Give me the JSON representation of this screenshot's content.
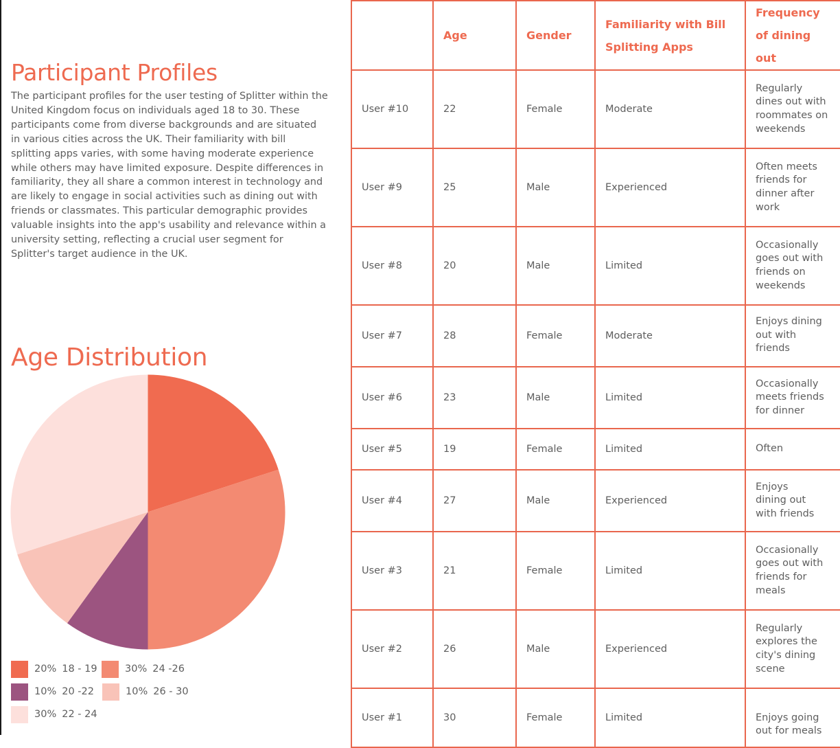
{
  "profiles": {
    "title": "Participant Profiles",
    "body": "The participant profiles for the user testing of Splitter within the United Kingdom focus on individuals aged 18 to 30. These participants come from diverse backgrounds and are situated in various cities across the UK. Their familiarity with bill splitting apps varies, with some having moderate experience while others may have limited exposure. Despite differences in familiarity, they all share a common interest in technology and are likely to engage in social activities such as dining out with friends or classmates. This particular demographic provides valuable insights into the app's usability and relevance within a university setting, reflecting a crucial user segment for Splitter's target audience in the UK."
  },
  "age_distribution": {
    "title": "Age Distribution",
    "legend": [
      {
        "percent": "20%",
        "range": "18 - 19",
        "color": "#f06b50"
      },
      {
        "percent": "30%",
        "range": "24 -26",
        "color": "#f38a72"
      },
      {
        "percent": "10%",
        "range": "20 -22",
        "color": "#9c5480"
      },
      {
        "percent": "10%",
        "range": "26 - 30",
        "color": "#f9c3b8"
      },
      {
        "percent": "30%",
        "range": "22 - 24",
        "color": "#fde0dc"
      }
    ]
  },
  "chart_data": {
    "type": "pie",
    "categories": [
      "18 - 19",
      "24 -26",
      "20 -22",
      "26 - 30",
      "22 - 24"
    ],
    "values": [
      20,
      30,
      10,
      10,
      30
    ],
    "colors": [
      "#f06b50",
      "#f38a72",
      "#9c5480",
      "#f9c3b8",
      "#fde0dc"
    ]
  },
  "table": {
    "headers": [
      "",
      "Age",
      "Gender",
      "Familiarity with Bill Splitting Apps",
      "Frequency of dining out"
    ],
    "rows": [
      {
        "user": "User #10",
        "age": "22",
        "gender": "Female",
        "familiarity": "Moderate",
        "frequency": "Regularly dines out with roommates on weekends"
      },
      {
        "user": "User #9",
        "age": "25",
        "gender": "Male",
        "familiarity": "Experienced",
        "frequency": "Often meets friends for dinner after work"
      },
      {
        "user": "User #8",
        "age": "20",
        "gender": "Male",
        "familiarity": "Limited",
        "frequency": "Occasionally goes out with friends on weekends"
      },
      {
        "user": "User #7",
        "age": "28",
        "gender": "Female",
        "familiarity": "Moderate",
        "frequency": "Enjoys dining out with friends"
      },
      {
        "user": "User #6",
        "age": "23",
        "gender": "Male",
        "familiarity": "Limited",
        "frequency": "Occasionally meets friends for dinner"
      },
      {
        "user": "User #5",
        "age": "19",
        "gender": "Female",
        "familiarity": "Limited",
        "frequency": "Often"
      },
      {
        "user": "User #4",
        "age": "27",
        "gender": "Male",
        "familiarity": "Experienced",
        "frequency": "Enjoys dining out with friends"
      },
      {
        "user": "User #3",
        "age": "21",
        "gender": "Female",
        "familiarity": "Limited",
        "frequency": "Occasionally goes out with friends for meals"
      },
      {
        "user": "User #2",
        "age": "26",
        "gender": "Male",
        "familiarity": "Experienced",
        "frequency": "Regularly explores the city's dining scene"
      },
      {
        "user": "User #1",
        "age": "30",
        "gender": "Female",
        "familiarity": "Limited",
        "frequency": "Enjoys going out for meals"
      }
    ]
  }
}
